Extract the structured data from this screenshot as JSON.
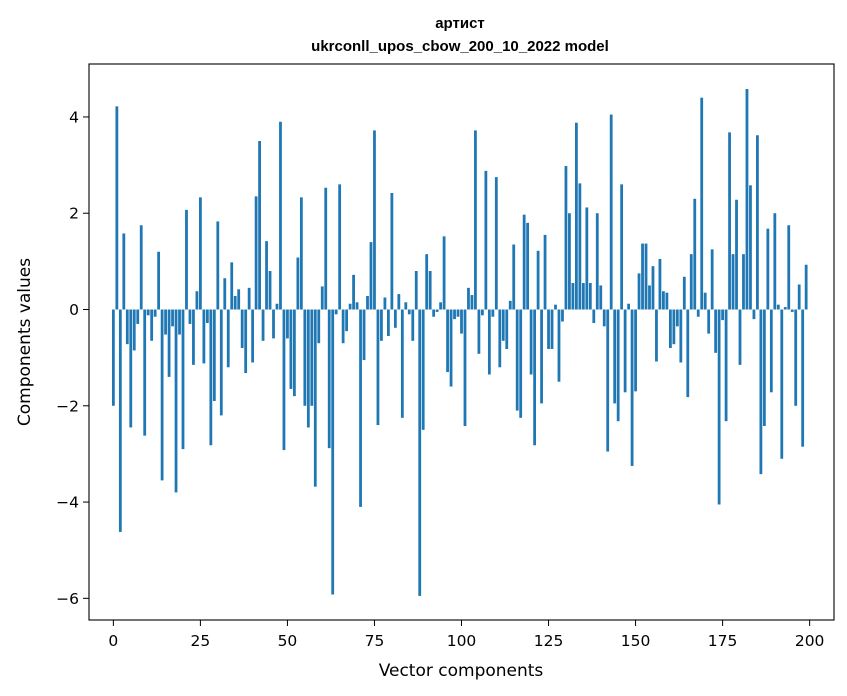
{
  "chart_data": {
    "type": "bar",
    "title": "артист",
    "subtitle": "ukrconll_upos_cbow_200_10_2022 model",
    "xlabel": "Vector components",
    "ylabel": "Components values",
    "xlim": [
      -7,
      207
    ],
    "ylim": [
      -6.45,
      5.1
    ],
    "xticks": [
      0,
      25,
      50,
      75,
      100,
      125,
      150,
      175,
      200
    ],
    "yticks": [
      -6,
      -4,
      -2,
      0,
      2,
      4
    ],
    "grid": false,
    "bar_color": "#1f77b4",
    "x": [
      0,
      1,
      2,
      3,
      4,
      5,
      6,
      7,
      8,
      9,
      10,
      11,
      12,
      13,
      14,
      15,
      16,
      17,
      18,
      19,
      20,
      21,
      22,
      23,
      24,
      25,
      26,
      27,
      28,
      29,
      30,
      31,
      32,
      33,
      34,
      35,
      36,
      37,
      38,
      39,
      40,
      41,
      42,
      43,
      44,
      45,
      46,
      47,
      48,
      49,
      50,
      51,
      52,
      53,
      54,
      55,
      56,
      57,
      58,
      59,
      60,
      61,
      62,
      63,
      64,
      65,
      66,
      67,
      68,
      69,
      70,
      71,
      72,
      73,
      74,
      75,
      76,
      77,
      78,
      79,
      80,
      81,
      82,
      83,
      84,
      85,
      86,
      87,
      88,
      89,
      90,
      91,
      92,
      93,
      94,
      95,
      96,
      97,
      98,
      99,
      100,
      101,
      102,
      103,
      104,
      105,
      106,
      107,
      108,
      109,
      110,
      111,
      112,
      113,
      114,
      115,
      116,
      117,
      118,
      119,
      120,
      121,
      122,
      123,
      124,
      125,
      126,
      127,
      128,
      129,
      130,
      131,
      132,
      133,
      134,
      135,
      136,
      137,
      138,
      139,
      140,
      141,
      142,
      143,
      144,
      145,
      146,
      147,
      148,
      149,
      150,
      151,
      152,
      153,
      154,
      155,
      156,
      157,
      158,
      159,
      160,
      161,
      162,
      163,
      164,
      165,
      166,
      167,
      168,
      169,
      170,
      171,
      172,
      173,
      174,
      175,
      176,
      177,
      178,
      179,
      180,
      181,
      182,
      183,
      184,
      185,
      186,
      187,
      188,
      189,
      190,
      191,
      192,
      193,
      194,
      195,
      196,
      197,
      198,
      199
    ],
    "values": [
      -2.0,
      4.22,
      -4.62,
      1.58,
      -0.72,
      -2.45,
      -0.85,
      -0.3,
      1.75,
      -2.62,
      -0.12,
      -0.65,
      -0.15,
      1.2,
      -3.55,
      -0.52,
      -1.4,
      -0.35,
      -3.8,
      -0.52,
      -2.9,
      2.07,
      -0.3,
      -1.15,
      0.38,
      2.33,
      -1.12,
      -0.28,
      -2.82,
      -1.9,
      1.83,
      -2.2,
      0.65,
      -1.2,
      0.98,
      0.28,
      0.42,
      -0.8,
      -1.32,
      0.45,
      -1.1,
      2.35,
      3.5,
      -0.65,
      1.42,
      0.8,
      -0.6,
      0.12,
      3.9,
      -2.92,
      -0.6,
      -1.65,
      -1.8,
      1.08,
      2.33,
      -2.0,
      -2.45,
      -2.0,
      -3.68,
      -0.7,
      0.48,
      2.53,
      -2.88,
      -5.92,
      -0.1,
      2.6,
      -0.7,
      -0.45,
      0.12,
      0.72,
      0.15,
      -4.1,
      -1.05,
      0.28,
      1.4,
      3.72,
      -2.4,
      -0.65,
      0.25,
      -0.55,
      2.42,
      -0.38,
      0.32,
      -2.25,
      0.15,
      -0.1,
      -0.65,
      0.8,
      -5.95,
      -2.5,
      1.15,
      0.8,
      -0.15,
      -0.05,
      0.15,
      1.52,
      -1.3,
      -1.6,
      -0.2,
      -0.15,
      -0.5,
      -2.42,
      0.45,
      0.3,
      3.72,
      -0.92,
      -0.12,
      2.88,
      -1.35,
      -0.15,
      2.75,
      -1.2,
      -0.65,
      -0.82,
      0.18,
      1.35,
      -2.1,
      -2.25,
      1.97,
      1.8,
      -1.35,
      -2.82,
      1.22,
      -1.95,
      1.55,
      -0.82,
      -0.82,
      0.1,
      -1.5,
      -0.25,
      2.98,
      2.0,
      0.55,
      3.88,
      2.62,
      0.55,
      2.12,
      0.55,
      -0.28,
      2.0,
      0.5,
      -0.35,
      -2.95,
      4.05,
      -1.95,
      -2.32,
      2.6,
      -1.72,
      0.12,
      -3.25,
      -1.7,
      0.75,
      1.37,
      1.37,
      0.5,
      0.9,
      -1.08,
      1.05,
      0.38,
      0.35,
      -0.8,
      -0.72,
      -0.35,
      -1.1,
      0.68,
      -1.82,
      1.15,
      2.3,
      -0.15,
      4.4,
      0.35,
      -0.5,
      1.25,
      -0.9,
      -4.05,
      -0.22,
      -2.32,
      3.68,
      1.15,
      2.28,
      -1.15,
      1.15,
      4.58,
      2.58,
      -0.2,
      3.62,
      -3.42,
      -2.42,
      1.68,
      -1.72,
      2.0,
      0.1,
      -3.1,
      0.05,
      1.75,
      -0.05,
      -2.0,
      0.52,
      -2.85,
      0.93
    ]
  }
}
